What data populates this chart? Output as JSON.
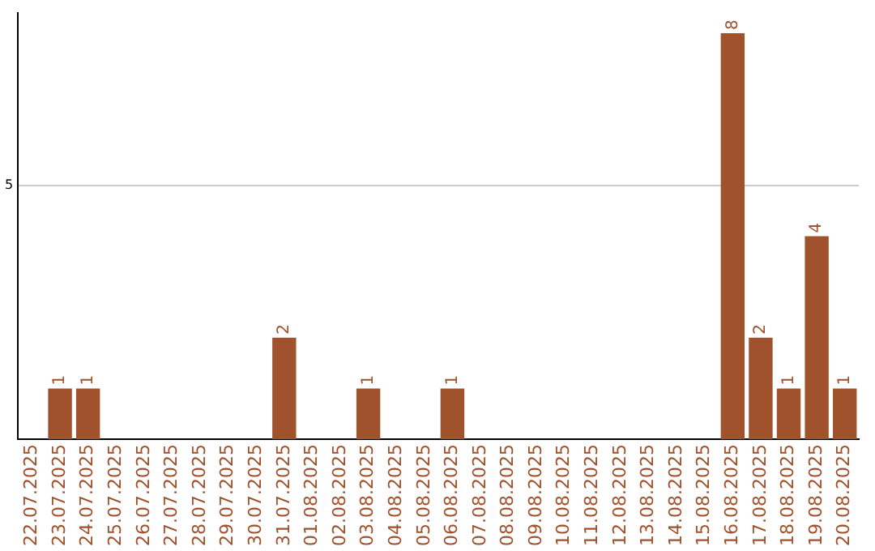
{
  "chart_data": {
    "type": "bar",
    "categories": [
      "22.07.2025",
      "23.07.2025",
      "24.07.2025",
      "25.07.2025",
      "26.07.2025",
      "27.07.2025",
      "28.07.2025",
      "29.07.2025",
      "30.07.2025",
      "31.07.2025",
      "01.08.2025",
      "02.08.2025",
      "03.08.2025",
      "04.08.2025",
      "05.08.2025",
      "06.08.2025",
      "07.08.2025",
      "08.08.2025",
      "09.08.2025",
      "10.08.2025",
      "11.08.2025",
      "12.08.2025",
      "13.08.2025",
      "14.08.2025",
      "15.08.2025",
      "16.08.2025",
      "17.08.2025",
      "18.08.2025",
      "19.08.2025",
      "20.08.2025"
    ],
    "values": [
      0,
      1,
      1,
      0,
      0,
      0,
      0,
      0,
      0,
      2,
      0,
      0,
      1,
      0,
      0,
      1,
      0,
      0,
      0,
      0,
      0,
      0,
      0,
      0,
      0,
      8,
      2,
      1,
      4,
      1
    ],
    "value_labels": [
      null,
      "1",
      "1",
      null,
      null,
      null,
      null,
      null,
      null,
      "2",
      null,
      null,
      "1",
      null,
      null,
      "1",
      null,
      null,
      null,
      null,
      null,
      null,
      null,
      null,
      null,
      "8",
      "2",
      "1",
      "4",
      "1"
    ],
    "color": "#a0522d",
    "ylim": [
      0,
      8.4
    ],
    "yticks": [
      5
    ],
    "grid": "y",
    "legend": false
  }
}
